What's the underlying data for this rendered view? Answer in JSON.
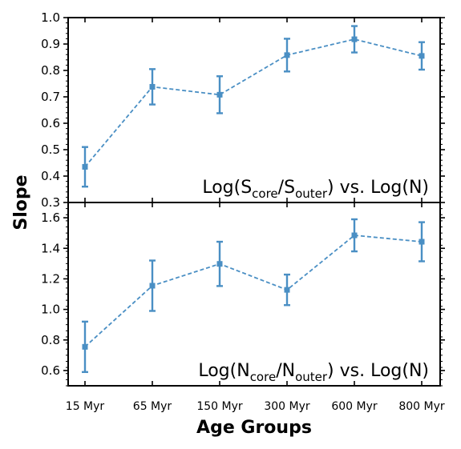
{
  "chart_data": {
    "type": "line",
    "shared_x": {
      "label": "Age Groups",
      "categories": [
        "15 Myr",
        "65 Myr",
        "150 Myr",
        "300 Myr",
        "600 Myr",
        "800 Myr"
      ]
    },
    "ylabel": "Slope",
    "color": "#4a8fc4",
    "grid": false,
    "panels": [
      {
        "annotation": {
          "prefix": "Log(S",
          "sub1": "core",
          "mid": "/S",
          "sub2": "outer",
          "suffix": ") vs. Log(N)"
        },
        "ylim": [
          0.3,
          1.0
        ],
        "yticks": [
          0.3,
          0.4,
          0.5,
          0.6,
          0.7,
          0.8,
          0.9,
          1.0
        ],
        "ytick_labels": [
          "0.3",
          "0.4",
          "0.5",
          "0.6",
          "0.7",
          "0.8",
          "0.9",
          "1.0"
        ],
        "values": [
          0.435,
          0.738,
          0.708,
          0.858,
          0.918,
          0.855
        ],
        "errors": [
          0.075,
          0.067,
          0.07,
          0.062,
          0.05,
          0.052
        ]
      },
      {
        "annotation": {
          "prefix": "Log(N",
          "sub1": "core",
          "mid": "/N",
          "sub2": "outer",
          "suffix": ") vs. Log(N)"
        },
        "ylim": [
          0.5,
          1.7
        ],
        "yticks": [
          0.6,
          0.8,
          1.0,
          1.2,
          1.4,
          1.6
        ],
        "ytick_labels": [
          "0.6",
          "0.8",
          "1.0",
          "1.2",
          "1.4",
          "1.6"
        ],
        "values": [
          0.755,
          1.155,
          1.298,
          1.128,
          1.485,
          1.443
        ],
        "errors": [
          0.165,
          0.165,
          0.145,
          0.1,
          0.105,
          0.128
        ]
      }
    ]
  }
}
